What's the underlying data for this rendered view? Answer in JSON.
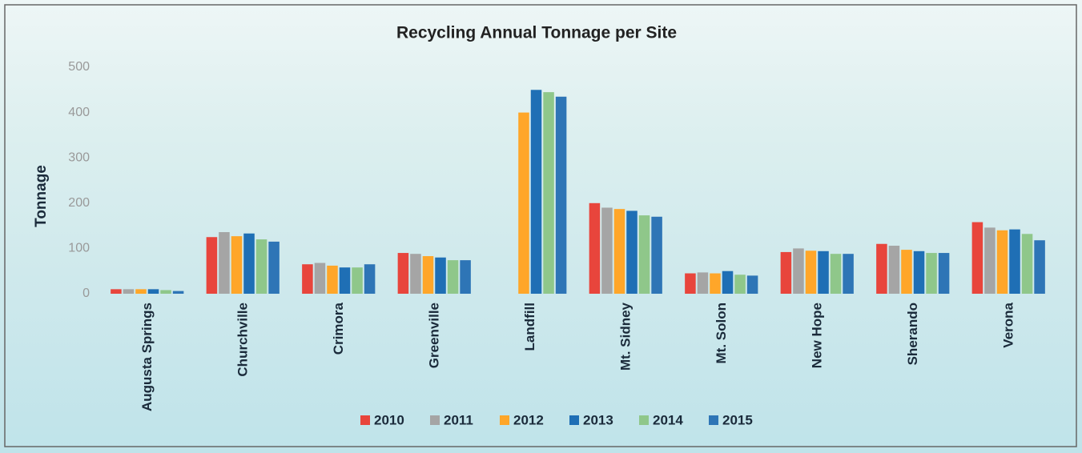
{
  "chart_data": {
    "type": "bar",
    "title": "Recycling Annual Tonnage per Site",
    "y_label": "Tonnage",
    "categories": [
      "Augusta Springs",
      "Churchville",
      "Crimora",
      "Greenville",
      "Landfill",
      "Mt. Sidney",
      "Mt. Solon",
      "New Hope",
      "Sherando",
      "Verona"
    ],
    "series": [
      {
        "name": "2010",
        "color": "#e8453c",
        "values": [
          10,
          125,
          65,
          90,
          0,
          200,
          45,
          92,
          110,
          158
        ]
      },
      {
        "name": "2011",
        "color": "#a5a5a5",
        "values": [
          10,
          136,
          68,
          88,
          0,
          190,
          47,
          100,
          106,
          146
        ]
      },
      {
        "name": "2012",
        "color": "#ffa629",
        "values": [
          10,
          127,
          62,
          83,
          400,
          187,
          45,
          95,
          97,
          140
        ]
      },
      {
        "name": "2013",
        "color": "#1f6fb5",
        "values": [
          10,
          133,
          58,
          80,
          450,
          183,
          50,
          94,
          94,
          142
        ]
      },
      {
        "name": "2014",
        "color": "#8fc78a",
        "values": [
          8,
          120,
          58,
          74,
          445,
          173,
          42,
          88,
          90,
          132
        ]
      },
      {
        "name": "2015",
        "color": "#2e75b6",
        "values": [
          6,
          115,
          65,
          74,
          435,
          170,
          40,
          88,
          90,
          118
        ]
      }
    ],
    "ylim": [
      0,
      500
    ],
    "yticks": [
      0,
      100,
      200,
      300,
      400,
      500
    ],
    "grid": false,
    "legend": "bottom"
  }
}
